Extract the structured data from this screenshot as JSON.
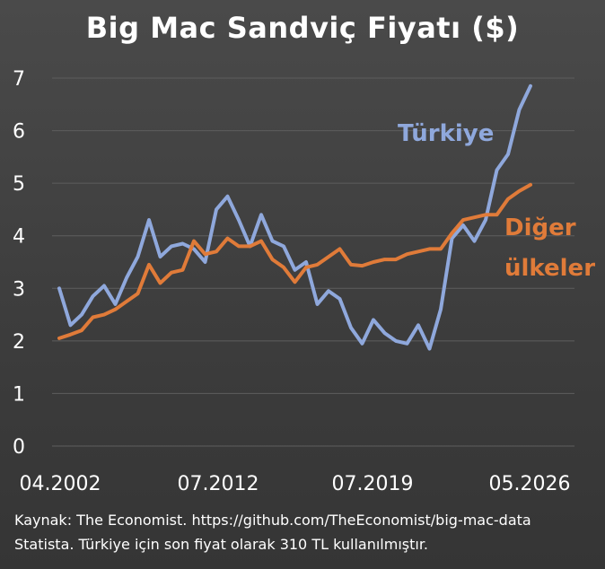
{
  "chart_data": {
    "type": "line",
    "title": "Big Mac Sandviç Fiyatı ($)",
    "xlabel": "",
    "ylabel": "",
    "x_ticks": [
      "04.2002",
      "07.2012",
      "07.2019",
      "05.2026"
    ],
    "y_ticks": [
      0,
      1,
      2,
      3,
      4,
      5,
      6,
      7
    ],
    "ylim": [
      0,
      7
    ],
    "grid": "horizontal",
    "series": [
      {
        "name": "Türkiye",
        "color": "#8fa8dc",
        "values": [
          3.0,
          2.3,
          2.5,
          2.85,
          3.05,
          2.7,
          3.2,
          3.6,
          4.3,
          3.6,
          3.8,
          3.85,
          3.75,
          3.5,
          4.5,
          4.75,
          4.3,
          3.8,
          4.4,
          3.9,
          3.8,
          3.35,
          3.5,
          2.7,
          2.95,
          2.8,
          2.25,
          1.95,
          2.4,
          2.15,
          2.0,
          1.95,
          2.3,
          1.85,
          2.6,
          3.95,
          4.2,
          3.9,
          4.3,
          5.25,
          5.55,
          6.4,
          6.85
        ]
      },
      {
        "name": "Diğer ülkeler",
        "color": "#e07b39",
        "values": [
          2.05,
          2.12,
          2.2,
          2.45,
          2.5,
          2.6,
          2.75,
          2.9,
          3.45,
          3.1,
          3.3,
          3.35,
          3.9,
          3.65,
          3.7,
          3.95,
          3.8,
          3.8,
          3.9,
          3.55,
          3.4,
          3.12,
          3.4,
          3.45,
          3.6,
          3.75,
          3.45,
          3.43,
          3.5,
          3.55,
          3.55,
          3.65,
          3.7,
          3.75,
          3.75,
          4.05,
          4.3,
          4.35,
          4.4,
          4.4,
          4.7,
          4.85,
          4.97
        ]
      }
    ],
    "series_labels": [
      {
        "lines": [
          "Türkiye"
        ],
        "color": "#8fa8dc"
      },
      {
        "lines": [
          "Diğer",
          "ülkeler"
        ],
        "color": "#e07b39"
      }
    ]
  },
  "footer": {
    "line1": "Kaynak: The Economist. https://github.com/TheEconomist/big-mac-data",
    "line2": "Statista. Türkiye için son fiyat olarak 310 TL kullanılmıştır."
  }
}
